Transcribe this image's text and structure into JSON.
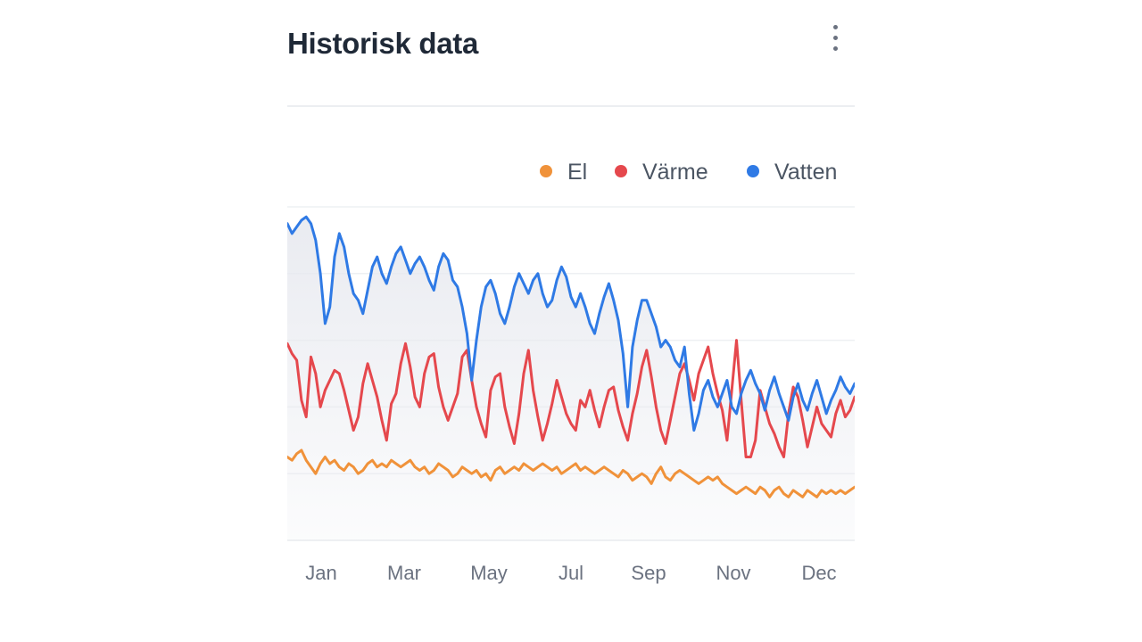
{
  "card": {
    "title": "Historisk data",
    "menu_icon": "more-vertical-icon"
  },
  "colors": {
    "el": "#f0923a",
    "varme": "#e5484d",
    "vatten": "#2f7ae5",
    "area_fill": "#e7e9ef",
    "grid": "#eef0f3"
  },
  "chart_data": {
    "type": "line",
    "x_ticks": [
      "Jan",
      "Mar",
      "May",
      "Jul",
      "Sep",
      "Nov",
      "Dec"
    ],
    "legend_position": "top-right",
    "grid": true,
    "ylim": [
      0,
      100
    ],
    "series": [
      {
        "name": "El",
        "color": "#f0923a",
        "values": [
          25,
          24,
          26,
          27,
          24,
          22,
          20,
          23,
          25,
          23,
          24,
          22,
          21,
          23,
          22,
          20,
          21,
          23,
          24,
          22,
          23,
          22,
          24,
          23,
          22,
          23,
          24,
          22,
          21,
          22,
          20,
          21,
          23,
          22,
          21,
          19,
          20,
          22,
          21,
          20,
          21,
          19,
          20,
          18,
          21,
          22,
          20,
          21,
          22,
          21,
          23,
          22,
          21,
          22,
          23,
          22,
          21,
          22,
          20,
          21,
          22,
          23,
          21,
          22,
          21,
          20,
          21,
          22,
          21,
          20,
          19,
          21,
          20,
          18,
          19,
          20,
          19,
          17,
          20,
          22,
          19,
          18,
          20,
          21,
          20,
          19,
          18,
          17,
          18,
          19,
          18,
          19,
          17,
          16,
          15,
          14,
          15,
          16,
          15,
          14,
          16,
          15,
          13,
          15,
          16,
          14,
          13,
          15,
          14,
          13,
          15,
          14,
          13,
          15,
          14,
          15,
          14,
          15,
          14,
          15,
          16
        ]
      },
      {
        "name": "Värme",
        "color": "#e5484d",
        "values": [
          59,
          56,
          54,
          42,
          37,
          55,
          50,
          40,
          45,
          48,
          51,
          50,
          45,
          39,
          33,
          37,
          47,
          53,
          48,
          43,
          36,
          30,
          41,
          44,
          53,
          59,
          52,
          43,
          40,
          50,
          55,
          56,
          46,
          40,
          36,
          40,
          44,
          55,
          57,
          48,
          40,
          35,
          31,
          45,
          49,
          50,
          40,
          34,
          29,
          38,
          50,
          57,
          45,
          37,
          30,
          35,
          41,
          48,
          43,
          38,
          35,
          33,
          42,
          40,
          45,
          39,
          34,
          40,
          45,
          46,
          39,
          34,
          30,
          38,
          44,
          52,
          57,
          49,
          40,
          33,
          29,
          36,
          43,
          50,
          53,
          48,
          42,
          50,
          54,
          58,
          50,
          44,
          39,
          30,
          45,
          60,
          42,
          25,
          25,
          30,
          45,
          40,
          35,
          32,
          28,
          25,
          38,
          46,
          43,
          36,
          28,
          34,
          40,
          35,
          33,
          31,
          38,
          42,
          37,
          39,
          43
        ]
      },
      {
        "name": "Vatten",
        "color": "#2f7ae5",
        "values": [
          95,
          92,
          94,
          96,
          97,
          95,
          90,
          80,
          65,
          70,
          85,
          92,
          88,
          80,
          74,
          72,
          68,
          75,
          82,
          85,
          80,
          77,
          82,
          86,
          88,
          84,
          80,
          83,
          85,
          82,
          78,
          75,
          82,
          86,
          84,
          78,
          76,
          70,
          62,
          48,
          60,
          70,
          76,
          78,
          74,
          68,
          65,
          70,
          76,
          80,
          77,
          74,
          78,
          80,
          74,
          70,
          72,
          78,
          82,
          79,
          73,
          70,
          74,
          70,
          65,
          62,
          68,
          73,
          77,
          72,
          66,
          56,
          40,
          58,
          66,
          72,
          72,
          68,
          64,
          58,
          60,
          58,
          54,
          52,
          58,
          44,
          33,
          38,
          45,
          48,
          43,
          40,
          44,
          48,
          40,
          38,
          44,
          48,
          51,
          47,
          44,
          39,
          45,
          49,
          44,
          40,
          36,
          43,
          47,
          42,
          39,
          44,
          48,
          43,
          38,
          42,
          45,
          49,
          46,
          44,
          47
        ]
      }
    ]
  }
}
